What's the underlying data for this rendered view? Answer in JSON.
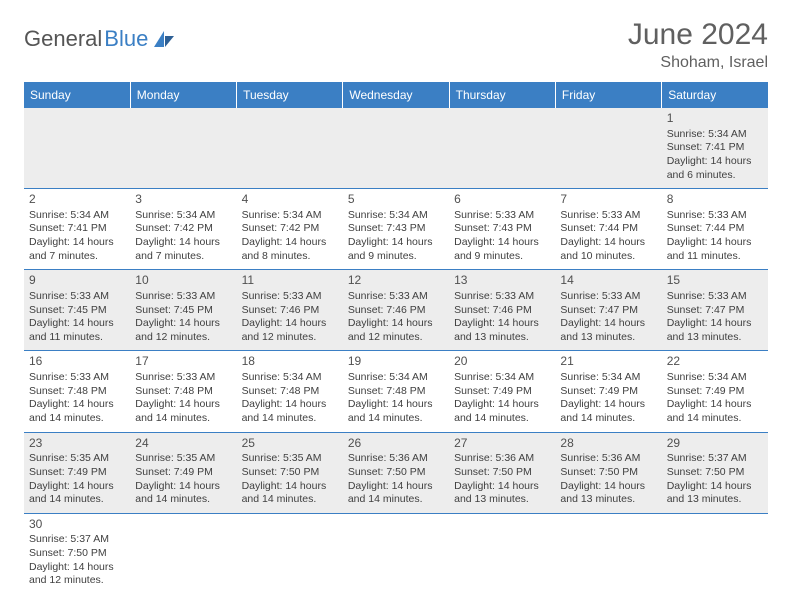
{
  "logo": {
    "text1": "General",
    "text2": "Blue"
  },
  "header": {
    "month": "June 2024",
    "location": "Shoham, Israel"
  },
  "colors": {
    "header_bg": "#3b7fc4",
    "header_text": "#ffffff",
    "row_alt_bg": "#ededed",
    "border": "#3b7fc4",
    "title_text": "#606060"
  },
  "dayNames": [
    "Sunday",
    "Monday",
    "Tuesday",
    "Wednesday",
    "Thursday",
    "Friday",
    "Saturday"
  ],
  "weeks": [
    [
      null,
      null,
      null,
      null,
      null,
      null,
      {
        "d": "1",
        "sr": "Sunrise: 5:34 AM",
        "ss": "Sunset: 7:41 PM",
        "dl1": "Daylight: 14 hours",
        "dl2": "and 6 minutes."
      }
    ],
    [
      {
        "d": "2",
        "sr": "Sunrise: 5:34 AM",
        "ss": "Sunset: 7:41 PM",
        "dl1": "Daylight: 14 hours",
        "dl2": "and 7 minutes."
      },
      {
        "d": "3",
        "sr": "Sunrise: 5:34 AM",
        "ss": "Sunset: 7:42 PM",
        "dl1": "Daylight: 14 hours",
        "dl2": "and 7 minutes."
      },
      {
        "d": "4",
        "sr": "Sunrise: 5:34 AM",
        "ss": "Sunset: 7:42 PM",
        "dl1": "Daylight: 14 hours",
        "dl2": "and 8 minutes."
      },
      {
        "d": "5",
        "sr": "Sunrise: 5:34 AM",
        "ss": "Sunset: 7:43 PM",
        "dl1": "Daylight: 14 hours",
        "dl2": "and 9 minutes."
      },
      {
        "d": "6",
        "sr": "Sunrise: 5:33 AM",
        "ss": "Sunset: 7:43 PM",
        "dl1": "Daylight: 14 hours",
        "dl2": "and 9 minutes."
      },
      {
        "d": "7",
        "sr": "Sunrise: 5:33 AM",
        "ss": "Sunset: 7:44 PM",
        "dl1": "Daylight: 14 hours",
        "dl2": "and 10 minutes."
      },
      {
        "d": "8",
        "sr": "Sunrise: 5:33 AM",
        "ss": "Sunset: 7:44 PM",
        "dl1": "Daylight: 14 hours",
        "dl2": "and 11 minutes."
      }
    ],
    [
      {
        "d": "9",
        "sr": "Sunrise: 5:33 AM",
        "ss": "Sunset: 7:45 PM",
        "dl1": "Daylight: 14 hours",
        "dl2": "and 11 minutes."
      },
      {
        "d": "10",
        "sr": "Sunrise: 5:33 AM",
        "ss": "Sunset: 7:45 PM",
        "dl1": "Daylight: 14 hours",
        "dl2": "and 12 minutes."
      },
      {
        "d": "11",
        "sr": "Sunrise: 5:33 AM",
        "ss": "Sunset: 7:46 PM",
        "dl1": "Daylight: 14 hours",
        "dl2": "and 12 minutes."
      },
      {
        "d": "12",
        "sr": "Sunrise: 5:33 AM",
        "ss": "Sunset: 7:46 PM",
        "dl1": "Daylight: 14 hours",
        "dl2": "and 12 minutes."
      },
      {
        "d": "13",
        "sr": "Sunrise: 5:33 AM",
        "ss": "Sunset: 7:46 PM",
        "dl1": "Daylight: 14 hours",
        "dl2": "and 13 minutes."
      },
      {
        "d": "14",
        "sr": "Sunrise: 5:33 AM",
        "ss": "Sunset: 7:47 PM",
        "dl1": "Daylight: 14 hours",
        "dl2": "and 13 minutes."
      },
      {
        "d": "15",
        "sr": "Sunrise: 5:33 AM",
        "ss": "Sunset: 7:47 PM",
        "dl1": "Daylight: 14 hours",
        "dl2": "and 13 minutes."
      }
    ],
    [
      {
        "d": "16",
        "sr": "Sunrise: 5:33 AM",
        "ss": "Sunset: 7:48 PM",
        "dl1": "Daylight: 14 hours",
        "dl2": "and 14 minutes."
      },
      {
        "d": "17",
        "sr": "Sunrise: 5:33 AM",
        "ss": "Sunset: 7:48 PM",
        "dl1": "Daylight: 14 hours",
        "dl2": "and 14 minutes."
      },
      {
        "d": "18",
        "sr": "Sunrise: 5:34 AM",
        "ss": "Sunset: 7:48 PM",
        "dl1": "Daylight: 14 hours",
        "dl2": "and 14 minutes."
      },
      {
        "d": "19",
        "sr": "Sunrise: 5:34 AM",
        "ss": "Sunset: 7:48 PM",
        "dl1": "Daylight: 14 hours",
        "dl2": "and 14 minutes."
      },
      {
        "d": "20",
        "sr": "Sunrise: 5:34 AM",
        "ss": "Sunset: 7:49 PM",
        "dl1": "Daylight: 14 hours",
        "dl2": "and 14 minutes."
      },
      {
        "d": "21",
        "sr": "Sunrise: 5:34 AM",
        "ss": "Sunset: 7:49 PM",
        "dl1": "Daylight: 14 hours",
        "dl2": "and 14 minutes."
      },
      {
        "d": "22",
        "sr": "Sunrise: 5:34 AM",
        "ss": "Sunset: 7:49 PM",
        "dl1": "Daylight: 14 hours",
        "dl2": "and 14 minutes."
      }
    ],
    [
      {
        "d": "23",
        "sr": "Sunrise: 5:35 AM",
        "ss": "Sunset: 7:49 PM",
        "dl1": "Daylight: 14 hours",
        "dl2": "and 14 minutes."
      },
      {
        "d": "24",
        "sr": "Sunrise: 5:35 AM",
        "ss": "Sunset: 7:49 PM",
        "dl1": "Daylight: 14 hours",
        "dl2": "and 14 minutes."
      },
      {
        "d": "25",
        "sr": "Sunrise: 5:35 AM",
        "ss": "Sunset: 7:50 PM",
        "dl1": "Daylight: 14 hours",
        "dl2": "and 14 minutes."
      },
      {
        "d": "26",
        "sr": "Sunrise: 5:36 AM",
        "ss": "Sunset: 7:50 PM",
        "dl1": "Daylight: 14 hours",
        "dl2": "and 14 minutes."
      },
      {
        "d": "27",
        "sr": "Sunrise: 5:36 AM",
        "ss": "Sunset: 7:50 PM",
        "dl1": "Daylight: 14 hours",
        "dl2": "and 13 minutes."
      },
      {
        "d": "28",
        "sr": "Sunrise: 5:36 AM",
        "ss": "Sunset: 7:50 PM",
        "dl1": "Daylight: 14 hours",
        "dl2": "and 13 minutes."
      },
      {
        "d": "29",
        "sr": "Sunrise: 5:37 AM",
        "ss": "Sunset: 7:50 PM",
        "dl1": "Daylight: 14 hours",
        "dl2": "and 13 minutes."
      }
    ],
    [
      {
        "d": "30",
        "sr": "Sunrise: 5:37 AM",
        "ss": "Sunset: 7:50 PM",
        "dl1": "Daylight: 14 hours",
        "dl2": "and 12 minutes."
      },
      null,
      null,
      null,
      null,
      null,
      null
    ]
  ]
}
